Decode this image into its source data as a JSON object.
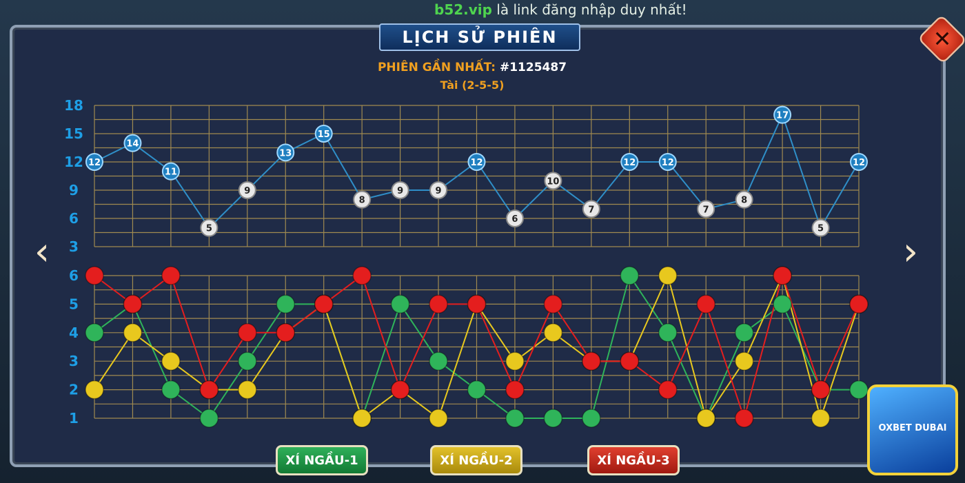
{
  "banner": {
    "site": "b52.vip",
    "text": " là link đăng nhập duy nhất!"
  },
  "dialog": {
    "title": "LỊCH SỬ PHIÊN",
    "close_icon": "close-x-icon",
    "latest_label": "PHIÊN GẦN NHẤT:",
    "latest_id": "#1125487",
    "latest_result": "Tài (2-5-5)"
  },
  "nav": {
    "prev_icon": "chevron-left-icon",
    "next_icon": "chevron-right-icon"
  },
  "buttons": {
    "dice1": "XÍ NGẦU-1",
    "dice2": "XÍ NGẦU-2",
    "dice3": "XÍ NGẦU-3"
  },
  "promo": {
    "label": "OXBET DUBAI"
  },
  "colors": {
    "dice1": "#2fb45a",
    "dice2": "#e8c81e",
    "dice3": "#e41e1e",
    "sum_line": "#2f8fc8",
    "grid": "#a08a50",
    "axis_label": "#1e9fe6"
  },
  "chart_data": [
    {
      "type": "line",
      "ylim": [
        3,
        18
      ],
      "yticks": [
        3,
        6,
        9,
        12,
        15,
        18
      ],
      "grid": true,
      "values": [
        12,
        14,
        11,
        5,
        9,
        13,
        15,
        8,
        9,
        9,
        12,
        6,
        10,
        7,
        12,
        12,
        7,
        8,
        17,
        5,
        12
      ]
    },
    {
      "type": "line",
      "ylim": [
        1,
        6
      ],
      "yticks": [
        1,
        2,
        3,
        4,
        5,
        6
      ],
      "grid": true,
      "series": [
        {
          "name": "XÍ NGẦU-1",
          "color": "#2fb45a",
          "values": [
            4,
            5,
            2,
            1,
            3,
            5,
            5,
            1,
            5,
            3,
            2,
            1,
            1,
            1,
            6,
            4,
            1,
            4,
            5,
            2,
            2
          ]
        },
        {
          "name": "XÍ NGẦU-2",
          "color": "#e8c81e",
          "values": [
            2,
            4,
            3,
            2,
            2,
            4,
            5,
            1,
            2,
            1,
            5,
            3,
            4,
            3,
            3,
            6,
            1,
            3,
            6,
            1,
            5
          ]
        },
        {
          "name": "XÍ NGẦU-3",
          "color": "#e41e1e",
          "values": [
            6,
            5,
            6,
            2,
            4,
            4,
            5,
            6,
            2,
            5,
            5,
            2,
            5,
            3,
            3,
            2,
            5,
            1,
            6,
            2,
            5
          ]
        }
      ]
    }
  ]
}
